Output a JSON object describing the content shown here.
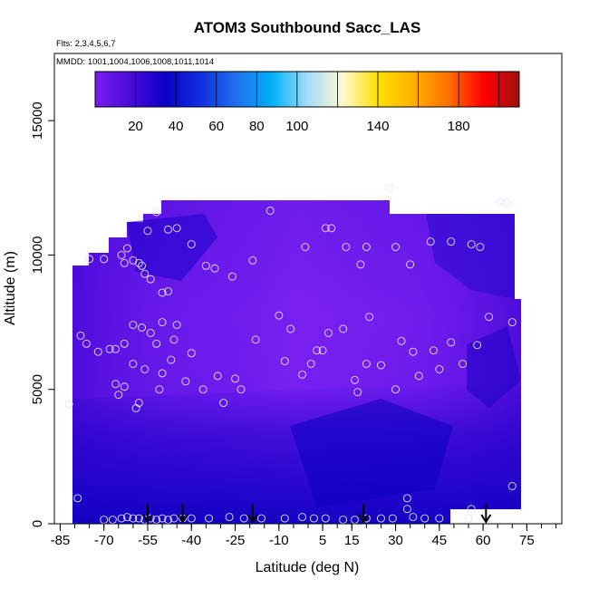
{
  "chart_data": {
    "type": "heatmap",
    "title": "ATOM3 Southbound Sacc_LAS",
    "annotations": [
      "Flts: 2,3,4,5,6,7",
      "MMDD: 1001,1004,1006,1008,1011,1014"
    ],
    "xlabel": "Latitude (deg N)",
    "ylabel": "Altitude (m)",
    "xlim": [
      -87,
      87
    ],
    "ylim": [
      0,
      17500
    ],
    "x_ticks": [
      "-85",
      "-70",
      "-55",
      "-40",
      "-25",
      "-10",
      "5",
      "15",
      "30",
      "45",
      "60",
      "75"
    ],
    "x_tick_values": [
      -85,
      -70,
      -55,
      -40,
      -25,
      -10,
      5,
      15,
      30,
      45,
      60,
      75
    ],
    "y_ticks": [
      "0",
      "5000",
      "10000",
      "15000"
    ],
    "y_tick_values": [
      0,
      5000,
      10000,
      15000
    ],
    "colorbar": {
      "range": [
        0,
        210
      ],
      "tick_labels": [
        "20",
        "40",
        "60",
        "80",
        "100",
        "140",
        "180"
      ],
      "tick_values": [
        20,
        40,
        60,
        80,
        100,
        140,
        180
      ],
      "colors": [
        "#7b1cf0",
        "#4a0ad8",
        "#0a00c8",
        "#1030e0",
        "#2070f0",
        "#00b0f8",
        "#a0dcf8",
        "#fff8d0",
        "#ffe000",
        "#ffb000",
        "#ff7000",
        "#ff0000",
        "#a01010"
      ]
    },
    "grid": false,
    "legend": "colorbar top",
    "field_summary": "values mostly 5-40 across the domain, lowest (dark blue, ~20-35) near the surface and at high latitudes aloft",
    "arrows_x": [
      -55,
      -43,
      -19,
      19,
      61
    ],
    "points": [
      {
        "x": -75,
        "y": 9850
      },
      {
        "x": -70,
        "y": 9850
      },
      {
        "x": -64,
        "y": 10000
      },
      {
        "x": -62,
        "y": 10250
      },
      {
        "x": -60,
        "y": 9800
      },
      {
        "x": -58,
        "y": 9700
      },
      {
        "x": -56,
        "y": 9300
      },
      {
        "x": -54,
        "y": 9100
      },
      {
        "x": -50,
        "y": 8600
      },
      {
        "x": -48,
        "y": 8650
      },
      {
        "x": -63,
        "y": 9700
      },
      {
        "x": -57,
        "y": 9600
      },
      {
        "x": -55,
        "y": 10900
      },
      {
        "x": -52,
        "y": 11600
      },
      {
        "x": -48,
        "y": 10950
      },
      {
        "x": -45,
        "y": 11000
      },
      {
        "x": -40,
        "y": 10400
      },
      {
        "x": -35,
        "y": 9600
      },
      {
        "x": -32,
        "y": 9500
      },
      {
        "x": -26,
        "y": 9200
      },
      {
        "x": -19,
        "y": 9800
      },
      {
        "x": -13,
        "y": 11650
      },
      {
        "x": -1,
        "y": 10300
      },
      {
        "x": 6,
        "y": 11000
      },
      {
        "x": 8,
        "y": 11000
      },
      {
        "x": 13,
        "y": 10300
      },
      {
        "x": 18,
        "y": 9650
      },
      {
        "x": 20,
        "y": 10300
      },
      {
        "x": 28,
        "y": 12500
      },
      {
        "x": 30,
        "y": 10300
      },
      {
        "x": 35,
        "y": 9650
      },
      {
        "x": 42,
        "y": 10500
      },
      {
        "x": 49,
        "y": 10500
      },
      {
        "x": 56,
        "y": 10400
      },
      {
        "x": 59,
        "y": 10300
      },
      {
        "x": 66,
        "y": 12000
      },
      {
        "x": 68,
        "y": 11950
      },
      {
        "x": -78,
        "y": 7000
      },
      {
        "x": -76,
        "y": 6700
      },
      {
        "x": -72,
        "y": 6400
      },
      {
        "x": -68,
        "y": 6500
      },
      {
        "x": -66,
        "y": 6500
      },
      {
        "x": -63,
        "y": 6700
      },
      {
        "x": -60,
        "y": 7400
      },
      {
        "x": -57,
        "y": 7300
      },
      {
        "x": -54,
        "y": 7100
      },
      {
        "x": -52,
        "y": 6700
      },
      {
        "x": -50,
        "y": 7500
      },
      {
        "x": -46,
        "y": 6850
      },
      {
        "x": -45,
        "y": 7400
      },
      {
        "x": -40,
        "y": 6350
      },
      {
        "x": -36,
        "y": 5000
      },
      {
        "x": -31,
        "y": 5500
      },
      {
        "x": -29,
        "y": 4500
      },
      {
        "x": -25,
        "y": 5400
      },
      {
        "x": -23,
        "y": 5000
      },
      {
        "x": -18,
        "y": 6850
      },
      {
        "x": -10,
        "y": 7750
      },
      {
        "x": -8,
        "y": 6050
      },
      {
        "x": -6,
        "y": 7250
      },
      {
        "x": -2,
        "y": 5550
      },
      {
        "x": 1,
        "y": 5950
      },
      {
        "x": 3,
        "y": 6450
      },
      {
        "x": 5,
        "y": 6450
      },
      {
        "x": 7,
        "y": 7100
      },
      {
        "x": 12,
        "y": 7250
      },
      {
        "x": 16,
        "y": 5350
      },
      {
        "x": 17,
        "y": 4900
      },
      {
        "x": 20,
        "y": 5950
      },
      {
        "x": 21,
        "y": 7700
      },
      {
        "x": 25,
        "y": 5900
      },
      {
        "x": 30,
        "y": 5000
      },
      {
        "x": 32,
        "y": 6800
      },
      {
        "x": 36,
        "y": 6400
      },
      {
        "x": 38,
        "y": 5500
      },
      {
        "x": 43,
        "y": 6450
      },
      {
        "x": 45,
        "y": 5750
      },
      {
        "x": 49,
        "y": 6750
      },
      {
        "x": 53,
        "y": 5950
      },
      {
        "x": 58,
        "y": 6650
      },
      {
        "x": 62,
        "y": 7700
      },
      {
        "x": 70,
        "y": 7500
      },
      {
        "x": -66,
        "y": 5200
      },
      {
        "x": -63,
        "y": 5100
      },
      {
        "x": -60,
        "y": 5950
      },
      {
        "x": -58,
        "y": 4500
      },
      {
        "x": -56,
        "y": 5750
      },
      {
        "x": -51,
        "y": 5000
      },
      {
        "x": -50,
        "y": 5600
      },
      {
        "x": -47,
        "y": 6100
      },
      {
        "x": -42,
        "y": 5300
      },
      {
        "x": -65,
        "y": 4800
      },
      {
        "x": -59,
        "y": 4300
      },
      {
        "x": -82,
        "y": 4450
      },
      {
        "x": 70,
        "y": 1400
      },
      {
        "x": -79,
        "y": 950
      },
      {
        "x": 34,
        "y": 950
      },
      {
        "x": 34,
        "y": 550
      },
      {
        "x": 56,
        "y": 550
      },
      {
        "x": -70,
        "y": 150
      },
      {
        "x": -67,
        "y": 150
      },
      {
        "x": -64,
        "y": 200
      },
      {
        "x": -62,
        "y": 250
      },
      {
        "x": -60,
        "y": 200
      },
      {
        "x": -58,
        "y": 200
      },
      {
        "x": -56,
        "y": 150
      },
      {
        "x": -54,
        "y": 200
      },
      {
        "x": -52,
        "y": 150
      },
      {
        "x": -50,
        "y": 200
      },
      {
        "x": -48,
        "y": 150
      },
      {
        "x": -46,
        "y": 200
      },
      {
        "x": -43,
        "y": 200
      },
      {
        "x": -40,
        "y": 200
      },
      {
        "x": -34,
        "y": 200
      },
      {
        "x": -27,
        "y": 250
      },
      {
        "x": -22,
        "y": 200
      },
      {
        "x": -16,
        "y": 200
      },
      {
        "x": -8,
        "y": 200
      },
      {
        "x": -2,
        "y": 250
      },
      {
        "x": 2,
        "y": 200
      },
      {
        "x": 6,
        "y": 200
      },
      {
        "x": 12,
        "y": 150
      },
      {
        "x": 16,
        "y": 150
      },
      {
        "x": 20,
        "y": 200
      },
      {
        "x": 25,
        "y": 200
      },
      {
        "x": 29,
        "y": 200
      },
      {
        "x": 36,
        "y": 250
      },
      {
        "x": 40,
        "y": 200
      },
      {
        "x": 45,
        "y": 200
      },
      {
        "x": 55,
        "y": 200
      }
    ]
  }
}
